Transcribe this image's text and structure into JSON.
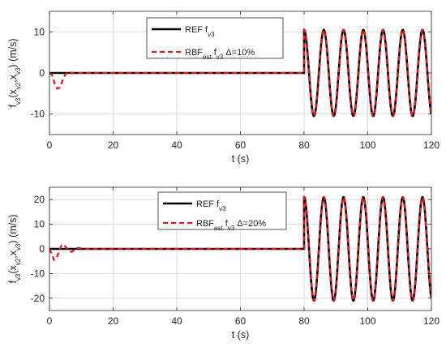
{
  "chart_data": [
    {
      "type": "line",
      "xlabel": "t (s)",
      "ylabel": {
        "pre": "f",
        "s1": "v3",
        "mid1": "(x",
        "s2": "v2",
        "mid2": ",x",
        "s3": "v3",
        "post": ") (m/s)"
      },
      "xlim": [
        0,
        120
      ],
      "ylim": [
        -15,
        15
      ],
      "xticks": [
        0,
        20,
        40,
        60,
        80,
        100,
        120
      ],
      "yticks": [
        -10,
        0,
        10
      ],
      "grid": true,
      "legend_position": "top-center",
      "legend": [
        {
          "main": "REF f",
          "sub": "v3",
          "tail": ""
        },
        {
          "main": "RBF",
          "sub": "est",
          "mid": " f",
          "sub2": "v3",
          "tail": " Δ=10%"
        }
      ],
      "series": [
        {
          "color": "#000000",
          "style": "solid",
          "signal": {
            "onset": 80,
            "amplitude": 10.5,
            "period": 6.2,
            "x_end": 120
          }
        },
        {
          "color": "#e8141a",
          "style": "dashed",
          "signal": {
            "onset": 80,
            "amplitude": 10.5,
            "period": 6.2,
            "x_end": 120
          },
          "transient": [
            [
              0,
              0
            ],
            [
              0.8,
              -0.5
            ],
            [
              1.6,
              -2.5
            ],
            [
              2.4,
              -3.8
            ],
            [
              3.2,
              -3.6
            ],
            [
              4.0,
              -2.0
            ],
            [
              4.8,
              -0.6
            ],
            [
              5.6,
              0.2
            ],
            [
              6.5,
              0.1
            ],
            [
              8,
              0
            ]
          ]
        }
      ]
    },
    {
      "type": "line",
      "xlabel": "t (s)",
      "ylabel": {
        "pre": "f",
        "s1": "v3",
        "mid1": "(x",
        "s2": "v2",
        "mid2": ",x",
        "s3": "v3",
        "post": ") (m/s)"
      },
      "xlim": [
        0,
        120
      ],
      "ylim": [
        -25,
        25
      ],
      "xticks": [
        0,
        20,
        40,
        60,
        80,
        100,
        120
      ],
      "yticks": [
        -20,
        -10,
        0,
        10,
        20
      ],
      "grid": true,
      "legend_position": "top-center",
      "legend": [
        {
          "main": "REF f",
          "sub": "v3",
          "tail": ""
        },
        {
          "main": "RBF",
          "sub": "est",
          "mid": " f",
          "sub2": "v3",
          "tail": " Δ=20%"
        }
      ],
      "series": [
        {
          "color": "#000000",
          "style": "solid",
          "signal": {
            "onset": 80,
            "amplitude": 21,
            "period": 6.2,
            "x_end": 120
          }
        },
        {
          "color": "#e8141a",
          "style": "dashed",
          "signal": {
            "onset": 80,
            "amplitude": 21,
            "period": 6.2,
            "x_end": 120
          },
          "transient": [
            [
              0,
              0
            ],
            [
              0.7,
              -2.0
            ],
            [
              1.4,
              -4.5
            ],
            [
              2.2,
              -3.8
            ],
            [
              3.0,
              -1.0
            ],
            [
              3.8,
              1.5
            ],
            [
              4.6,
              1.6
            ],
            [
              5.4,
              0.3
            ],
            [
              6.2,
              -1.0
            ],
            [
              7.0,
              -1.2
            ],
            [
              8.0,
              -0.3
            ],
            [
              9.0,
              0.4
            ],
            [
              10.0,
              0.2
            ],
            [
              11.5,
              0
            ]
          ]
        }
      ]
    }
  ]
}
